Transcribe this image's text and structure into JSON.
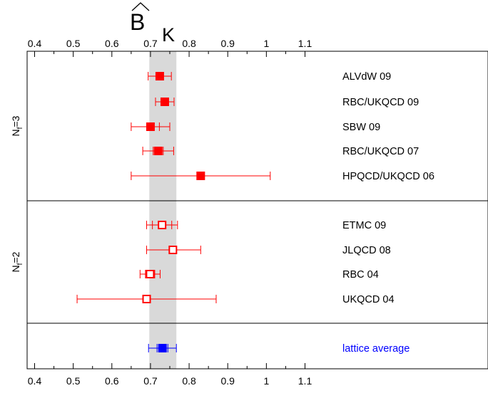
{
  "chart_data": {
    "type": "forest",
    "title": "B",
    "title_subscript": "K",
    "xlim": [
      0.4,
      1.2
    ],
    "x_ticks": [
      "0.4",
      "0.5",
      "0.6",
      "0.7",
      "0.8",
      "0.9",
      "1",
      "1.1"
    ],
    "band": [
      0.697,
      0.767
    ],
    "groups": [
      {
        "label": "N",
        "label_sub": "f",
        "label_suffix": "=3",
        "marker": "filled",
        "color": "#ff0000",
        "entries": [
          {
            "name": "ALVdW 09",
            "value": 0.724,
            "err_low": 0.694,
            "err_high": 0.754,
            "inner_low": 0.716,
            "inner_high": 0.732
          },
          {
            "name": "RBC/UKQCD 09",
            "value": 0.737,
            "err_low": 0.713,
            "err_high": 0.761,
            "inner_low": 0.73,
            "inner_high": 0.744
          },
          {
            "name": "SBW 09",
            "value": 0.7,
            "err_low": 0.65,
            "err_high": 0.75,
            "inner_low": 0.69,
            "inner_high": 0.723
          },
          {
            "name": "RBC/UKQCD 07",
            "value": 0.72,
            "err_low": 0.68,
            "err_high": 0.76,
            "inner_low": 0.707,
            "inner_high": 0.733
          },
          {
            "name": "HPQCD/UKQCD 06",
            "value": 0.83,
            "err_low": 0.65,
            "err_high": 1.01,
            "inner_low": 0.83,
            "inner_high": 0.83
          }
        ]
      },
      {
        "label": "N",
        "label_sub": "f",
        "label_suffix": "=2",
        "marker": "open",
        "color": "#ff0000",
        "entries": [
          {
            "name": "ETMC 09",
            "value": 0.73,
            "err_low": 0.69,
            "err_high": 0.77,
            "inner_low": 0.705,
            "inner_high": 0.755
          },
          {
            "name": "JLQCD 08",
            "value": 0.758,
            "err_low": 0.69,
            "err_high": 0.83,
            "inner_low": 0.758,
            "inner_high": 0.758
          },
          {
            "name": "RBC 04",
            "value": 0.699,
            "err_low": 0.673,
            "err_high": 0.725,
            "inner_low": 0.687,
            "inner_high": 0.711
          },
          {
            "name": "UKQCD 04",
            "value": 0.69,
            "err_low": 0.51,
            "err_high": 0.87,
            "inner_low": 0.69,
            "inner_high": 0.69
          }
        ]
      },
      {
        "label": "",
        "marker": "filled",
        "color": "#0000ff",
        "entries": [
          {
            "name": "lattice average",
            "value": 0.731,
            "err_low": 0.695,
            "err_high": 0.767,
            "inner_low": 0.717,
            "inner_high": 0.745
          }
        ]
      }
    ]
  }
}
